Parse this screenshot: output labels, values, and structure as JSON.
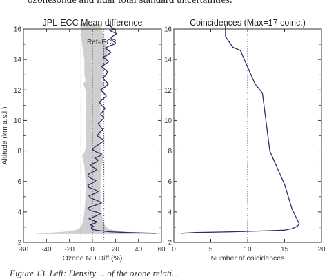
{
  "top_text": "ozonesonde and lidar total standard uncertainties.",
  "bottom_text": "Figure 13. Left: Density ... of the ozone relati...",
  "chart_data": [
    {
      "type": "line",
      "title": "JPL-ECC Mean difference",
      "xlabel": "Ozone ND Diff (%)",
      "ylabel": "Altitude (km a.s.l.)",
      "xlim": [
        -60,
        60
      ],
      "ylim": [
        2,
        16
      ],
      "xticks": [
        -60,
        -40,
        -20,
        0,
        20,
        40,
        60
      ],
      "yticks": [
        2,
        4,
        6,
        8,
        10,
        12,
        14,
        16
      ],
      "annotation": "Ref=ECC",
      "colors": {
        "line": "#2b2b6e",
        "band": "#cfcfcf",
        "ref": "#333333"
      },
      "reference_lines_x": [
        -10,
        0,
        10
      ],
      "series": [
        {
          "x": [
            55,
            30,
            15,
            8,
            3,
            0,
            -1,
            1,
            -2,
            2,
            4,
            0,
            -3,
            2,
            5,
            7,
            3,
            -2,
            -4,
            1,
            5,
            8,
            4,
            -1,
            -3,
            2,
            5,
            1,
            -3,
            -4,
            0,
            3,
            -1,
            -4,
            -3,
            1,
            4,
            0,
            -2,
            3,
            5,
            2,
            6,
            8,
            3,
            0,
            2,
            5,
            8,
            10,
            7,
            4,
            6,
            9,
            7,
            5,
            8,
            10,
            7,
            9,
            11,
            8,
            6,
            9,
            12,
            10,
            7,
            11,
            14,
            11,
            9,
            12,
            13,
            10,
            8,
            11,
            14,
            12,
            9,
            13,
            16,
            14,
            11,
            15,
            19,
            20,
            17,
            16,
            18,
            21,
            18,
            15,
            19,
            17,
            14
          ],
          "y": [
            2.6,
            2.65,
            2.7,
            2.75,
            2.8,
            2.85,
            2.95,
            3.05,
            3.15,
            3.25,
            3.35,
            3.45,
            3.55,
            3.7,
            3.8,
            3.9,
            4.0,
            4.1,
            4.25,
            4.4,
            4.5,
            4.6,
            4.75,
            4.9,
            5.05,
            5.2,
            5.35,
            5.5,
            5.6,
            5.75,
            5.9,
            6.05,
            6.2,
            6.35,
            6.5,
            6.65,
            6.8,
            6.95,
            7.1,
            7.25,
            7.4,
            7.55,
            7.65,
            7.8,
            7.95,
            8.1,
            8.25,
            8.4,
            8.55,
            8.7,
            8.85,
            9.0,
            9.2,
            9.4,
            9.6,
            9.8,
            10.0,
            10.2,
            10.4,
            10.6,
            10.8,
            11.0,
            11.2,
            11.4,
            11.6,
            11.8,
            12.0,
            12.2,
            12.4,
            12.6,
            12.8,
            13.0,
            13.2,
            13.4,
            13.55,
            13.7,
            13.85,
            14.0,
            14.15,
            14.3,
            14.45,
            14.6,
            14.75,
            14.9,
            15.0,
            15.1,
            15.25,
            15.4,
            15.55,
            15.7,
            15.8,
            15.9,
            16.0,
            16.1,
            16.3
          ]
        }
      ],
      "band": {
        "y": [
          2.55,
          2.6,
          2.65,
          2.7,
          2.8,
          2.9,
          3.0,
          3.2,
          3.5,
          4.0,
          5.0,
          6.0,
          7.0,
          7.7,
          7.9,
          8.2,
          9.0,
          10.0,
          11.0,
          12.0,
          12.4,
          12.6,
          13.0,
          13.5,
          14.0,
          14.5,
          15.0,
          15.5,
          16.0,
          16.3
        ],
        "lower": [
          -50,
          -45,
          -35,
          -25,
          -15,
          -12,
          -10,
          -9,
          -8,
          -7,
          -6,
          -6,
          -7,
          -9,
          -7,
          -6,
          -6,
          -6,
          -6,
          -6,
          -8,
          -6,
          -7,
          -7,
          -7,
          -8,
          -9,
          -10,
          -10,
          -11
        ],
        "upper": [
          60,
          55,
          40,
          28,
          18,
          14,
          12,
          10,
          9,
          8,
          7,
          7,
          8,
          10,
          8,
          7,
          7,
          7,
          7,
          8,
          10,
          8,
          9,
          10,
          12,
          14,
          12,
          10,
          8,
          8
        ]
      }
    },
    {
      "type": "line",
      "title": "Coincidences (Max=17 coinc.)",
      "xlabel": "Number of coicidences",
      "ylabel": "",
      "xlim": [
        0,
        20
      ],
      "ylim": [
        2,
        16
      ],
      "xticks": [
        0,
        5,
        10,
        15,
        20
      ],
      "yticks": [
        2,
        4,
        6,
        8,
        10,
        12,
        14,
        16
      ],
      "colors": {
        "line": "#2b2b6e",
        "ref": "#333333"
      },
      "reference_lines_x": [
        10
      ],
      "series": [
        {
          "x": [
            1,
            3,
            8,
            12,
            15,
            16,
            16.5,
            16.8,
            17,
            16,
            15,
            13,
            12,
            11,
            10,
            9,
            8,
            7,
            7
          ],
          "y": [
            2.6,
            2.65,
            2.7,
            2.75,
            2.8,
            2.9,
            3.0,
            3.1,
            3.2,
            4.2,
            5.8,
            8.0,
            11.8,
            12.4,
            13.5,
            14.6,
            14.8,
            15.5,
            16.3
          ]
        }
      ]
    }
  ]
}
